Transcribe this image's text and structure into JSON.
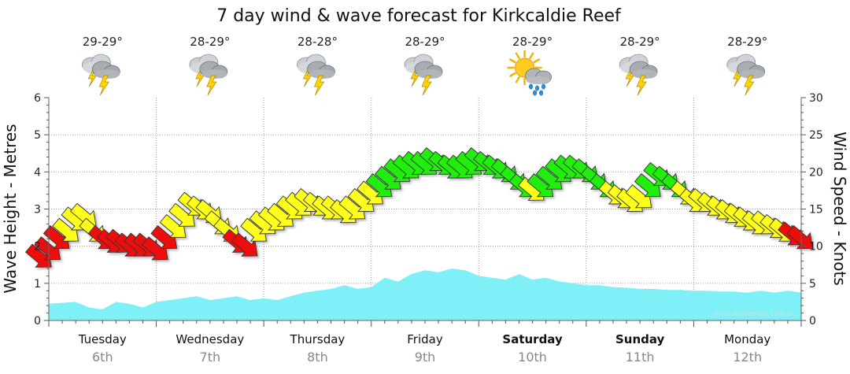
{
  "chart_data": {
    "type": "area",
    "title": "7 day wind & wave forecast for Kirkcaldie Reef",
    "ylabel_left": "Wave Height - Metres",
    "ylabel_right": "Wind Speed - Knots",
    "y_left_range": [
      0,
      6
    ],
    "y_right_range": [
      0,
      30
    ],
    "y_left_ticks": [
      "0",
      "1",
      "2",
      "3",
      "4",
      "5",
      "6"
    ],
    "y_right_ticks": [
      "0",
      "5",
      "10",
      "15",
      "20",
      "25",
      "30"
    ],
    "grid": true,
    "watermark": "www.seabreeze.com.au",
    "days": [
      {
        "name": "Tuesday",
        "date": "6th",
        "bold": false,
        "temp": "29-29°",
        "weather_icon": "storm-cloud-icon"
      },
      {
        "name": "Wednesday",
        "date": "7th",
        "bold": false,
        "temp": "28-29°",
        "weather_icon": "storm-cloud-icon"
      },
      {
        "name": "Thursday",
        "date": "8th",
        "bold": false,
        "temp": "28-28°",
        "weather_icon": "storm-cloud-icon"
      },
      {
        "name": "Friday",
        "date": "9th",
        "bold": false,
        "temp": "28-29°",
        "weather_icon": "storm-cloud-icon"
      },
      {
        "name": "Saturday",
        "date": "10th",
        "bold": true,
        "temp": "28-29°",
        "weather_icon": "sun-rain-cloud-icon"
      },
      {
        "name": "Sunday",
        "date": "11th",
        "bold": true,
        "temp": "28-29°",
        "weather_icon": "storm-cloud-icon"
      },
      {
        "name": "Monday",
        "date": "12th",
        "bold": false,
        "temp": "28-29°",
        "weather_icon": "storm-cloud-icon"
      }
    ],
    "series": [
      {
        "name": "Wave Height",
        "axis": "left",
        "color": "#7ff0f7",
        "x_hours": [
          0,
          6,
          9,
          12,
          15,
          18,
          21,
          24,
          27,
          30,
          33,
          36,
          39,
          42,
          45,
          48,
          51,
          54,
          57,
          60,
          63,
          66,
          69,
          72,
          75,
          78,
          81,
          84,
          87,
          90,
          93,
          96,
          99,
          102,
          105,
          108,
          111,
          114,
          117,
          120,
          123,
          126,
          129,
          132,
          135,
          138,
          141,
          144,
          147,
          150,
          153,
          156,
          159,
          162,
          165,
          168
        ],
        "values": [
          0.45,
          0.5,
          0.35,
          0.3,
          0.5,
          0.45,
          0.35,
          0.5,
          0.55,
          0.6,
          0.65,
          0.55,
          0.6,
          0.65,
          0.55,
          0.6,
          0.55,
          0.65,
          0.75,
          0.8,
          0.85,
          0.95,
          0.85,
          0.9,
          1.15,
          1.05,
          1.25,
          1.35,
          1.3,
          1.4,
          1.35,
          1.2,
          1.15,
          1.1,
          1.25,
          1.1,
          1.15,
          1.05,
          1.0,
          0.95,
          0.95,
          0.9,
          0.88,
          0.85,
          0.85,
          0.82,
          0.82,
          0.8,
          0.8,
          0.78,
          0.78,
          0.75,
          0.8,
          0.75,
          0.8,
          0.75
        ]
      },
      {
        "name": "Wind Speed",
        "axis": "right",
        "x_hours": [
          -2,
          0,
          2,
          4,
          6,
          8,
          10,
          12,
          14,
          16,
          18,
          20,
          22,
          24,
          26,
          28,
          30,
          32,
          34,
          36,
          38,
          40,
          42,
          44,
          46,
          48,
          50,
          52,
          54,
          56,
          58,
          60,
          62,
          64,
          66,
          68,
          70,
          72,
          74,
          76,
          78,
          80,
          82,
          84,
          86,
          88,
          90,
          92,
          94,
          96,
          98,
          100,
          102,
          104,
          106,
          108,
          110,
          112,
          114,
          116,
          118,
          120,
          122,
          124,
          126,
          128,
          130,
          132,
          134,
          136,
          138,
          140,
          142,
          144,
          146,
          148,
          150,
          152,
          154,
          156,
          158,
          160,
          162,
          164,
          166,
          168
        ],
        "values": [
          8.5,
          9.5,
          11,
          12,
          13.5,
          14,
          12,
          11,
          10.5,
          10.5,
          10,
          10,
          10,
          9.5,
          11,
          12.5,
          14,
          15.5,
          15,
          14.5,
          13,
          12,
          10.5,
          10,
          12,
          13,
          13.5,
          14,
          15,
          15.5,
          16,
          15.5,
          15,
          15,
          14.5,
          15,
          16,
          17,
          18,
          19,
          20,
          20.5,
          21,
          21,
          21.5,
          21,
          20.5,
          20.5,
          21,
          21.5,
          21,
          20.5,
          20,
          19,
          18,
          17.5,
          18,
          19,
          20,
          20.5,
          20.5,
          20,
          19,
          18,
          17,
          16.5,
          16,
          16.5,
          18,
          19.5,
          19,
          18,
          17,
          16,
          16,
          15.5,
          15,
          14.5,
          14,
          13.5,
          13,
          13,
          12.5,
          12,
          11.5,
          11
        ],
        "arrow_direction": "south-east (blowing toward bottom-right)",
        "color_bands": {
          "red": "under 12 knots",
          "yellow": "12 to 18 knots",
          "green": "over 18 knots"
        },
        "colors": {
          "red": "#ee1111",
          "yellow": "#ffff1f",
          "green": "#22ee11"
        }
      }
    ]
  }
}
